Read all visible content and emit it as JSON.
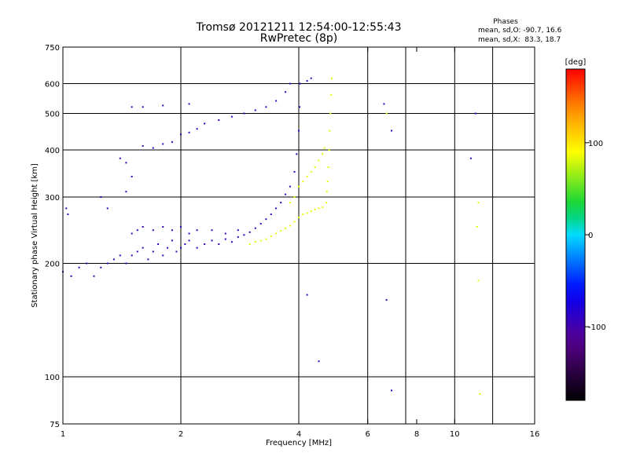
{
  "title": "Tromsø 20121211 12:54:00-12:55:43",
  "subtitle": "RwPretec (8p)",
  "stats": {
    "heading": "Phases",
    "line_o": "mean, sd,O: -90.7, 16.6",
    "line_x": "mean, sd,X:  83.3, 18.7"
  },
  "colorbar": {
    "label": "[deg]",
    "range": [
      -180,
      180
    ],
    "ticks": [
      {
        "value": 100,
        "label": "100"
      },
      {
        "value": 0,
        "label": "0"
      },
      {
        "value": -100,
        "label": "-100"
      }
    ]
  },
  "chart_data": {
    "type": "scatter",
    "title": "Tromsø 20121211 12:54:00-12:55:43",
    "subtitle": "RwPretec (8p)",
    "xlabel": "Frequency [MHz]",
    "ylabel": "Stationary phase Virtual Height [km]",
    "xscale": "log",
    "yscale": "log",
    "xlim": [
      1,
      16
    ],
    "ylim": [
      75,
      750
    ],
    "xticks": [
      1,
      2,
      4,
      6,
      8,
      10,
      16
    ],
    "xtick_labels": [
      "1",
      "2",
      "4",
      "6",
      "8",
      "10",
      "16"
    ],
    "x_gridlines": [
      2,
      4,
      6,
      7.5,
      10,
      12.5
    ],
    "yticks": [
      75,
      100,
      200,
      300,
      400,
      500,
      600,
      750
    ],
    "ytick_labels": [
      "75",
      "100",
      "200",
      "300",
      "400",
      "500",
      "600",
      "750"
    ],
    "y_gridlines": [
      100,
      200,
      300,
      400,
      500,
      600
    ],
    "color_variable": "phase [deg]",
    "series": [
      {
        "mode": "O",
        "color_phase": -95,
        "points": [
          [
            1.02,
            280
          ],
          [
            1.03,
            270
          ],
          [
            1.0,
            190
          ],
          [
            1.05,
            185
          ],
          [
            1.1,
            195
          ],
          [
            1.15,
            200
          ],
          [
            1.2,
            185
          ],
          [
            1.25,
            195
          ],
          [
            1.3,
            200
          ],
          [
            1.35,
            205
          ],
          [
            1.4,
            210
          ],
          [
            1.45,
            200
          ],
          [
            1.5,
            210
          ],
          [
            1.55,
            215
          ],
          [
            1.6,
            220
          ],
          [
            1.65,
            205
          ],
          [
            1.7,
            215
          ],
          [
            1.75,
            225
          ],
          [
            1.8,
            210
          ],
          [
            1.85,
            220
          ],
          [
            1.9,
            230
          ],
          [
            1.95,
            215
          ],
          [
            2.0,
            220
          ],
          [
            2.05,
            225
          ],
          [
            2.1,
            230
          ],
          [
            2.2,
            220
          ],
          [
            2.3,
            225
          ],
          [
            2.4,
            230
          ],
          [
            2.5,
            225
          ],
          [
            2.6,
            232
          ],
          [
            2.7,
            228
          ],
          [
            2.8,
            235
          ],
          [
            2.9,
            238
          ],
          [
            3.0,
            242
          ],
          [
            3.1,
            248
          ],
          [
            3.2,
            255
          ],
          [
            3.3,
            262
          ],
          [
            3.4,
            270
          ],
          [
            3.5,
            280
          ],
          [
            3.6,
            290
          ],
          [
            3.7,
            305
          ],
          [
            3.8,
            320
          ],
          [
            3.9,
            350
          ],
          [
            3.95,
            390
          ],
          [
            4.0,
            450
          ],
          [
            4.02,
            520
          ],
          [
            4.03,
            600
          ],
          [
            1.5,
            240
          ],
          [
            1.55,
            245
          ],
          [
            1.6,
            250
          ],
          [
            1.7,
            245
          ],
          [
            1.8,
            250
          ],
          [
            1.9,
            245
          ],
          [
            2.0,
            250
          ],
          [
            2.1,
            240
          ],
          [
            2.2,
            245
          ],
          [
            2.4,
            245
          ],
          [
            2.6,
            240
          ],
          [
            2.8,
            245
          ],
          [
            1.6,
            410
          ],
          [
            1.7,
            405
          ],
          [
            1.8,
            415
          ],
          [
            1.9,
            420
          ],
          [
            2.0,
            440
          ],
          [
            2.1,
            445
          ],
          [
            2.2,
            455
          ],
          [
            2.3,
            470
          ],
          [
            2.5,
            480
          ],
          [
            2.7,
            490
          ],
          [
            2.9,
            500
          ],
          [
            3.1,
            510
          ],
          [
            3.3,
            520
          ],
          [
            3.5,
            540
          ],
          [
            3.7,
            570
          ],
          [
            3.8,
            600
          ],
          [
            1.5,
            520
          ],
          [
            1.6,
            520
          ],
          [
            1.8,
            525
          ],
          [
            2.1,
            530
          ],
          [
            1.4,
            380
          ],
          [
            1.45,
            370
          ],
          [
            1.5,
            340
          ],
          [
            1.45,
            310
          ],
          [
            4.3,
            620
          ],
          [
            4.2,
            610
          ],
          [
            1.25,
            300
          ],
          [
            1.3,
            280
          ],
          [
            6.6,
            530
          ],
          [
            6.9,
            450
          ],
          [
            6.7,
            160
          ],
          [
            6.9,
            92
          ],
          [
            4.5,
            110
          ],
          [
            4.2,
            165
          ],
          [
            11.3,
            500
          ],
          [
            11.0,
            380
          ]
        ]
      },
      {
        "mode": "X",
        "color_phase": 85,
        "points": [
          [
            3.0,
            225
          ],
          [
            3.1,
            228
          ],
          [
            3.2,
            230
          ],
          [
            3.3,
            232
          ],
          [
            3.4,
            236
          ],
          [
            3.5,
            240
          ],
          [
            3.6,
            244
          ],
          [
            3.7,
            248
          ],
          [
            3.8,
            252
          ],
          [
            3.9,
            258
          ],
          [
            4.0,
            265
          ],
          [
            4.1,
            270
          ],
          [
            4.2,
            272
          ],
          [
            4.3,
            275
          ],
          [
            4.4,
            278
          ],
          [
            4.5,
            280
          ],
          [
            4.6,
            282
          ],
          [
            4.7,
            290
          ],
          [
            4.72,
            310
          ],
          [
            4.74,
            330
          ],
          [
            4.76,
            360
          ],
          [
            4.78,
            400
          ],
          [
            4.8,
            450
          ],
          [
            4.82,
            500
          ],
          [
            4.84,
            560
          ],
          [
            4.86,
            620
          ],
          [
            3.8,
            290
          ],
          [
            3.9,
            300
          ],
          [
            4.0,
            320
          ],
          [
            4.1,
            330
          ],
          [
            4.2,
            340
          ],
          [
            4.3,
            350
          ],
          [
            4.4,
            360
          ],
          [
            4.5,
            375
          ],
          [
            4.6,
            390
          ],
          [
            4.65,
            405
          ],
          [
            6.7,
            500
          ],
          [
            11.5,
            290
          ],
          [
            11.4,
            250
          ],
          [
            11.5,
            180
          ],
          [
            11.6,
            90
          ]
        ]
      }
    ]
  }
}
